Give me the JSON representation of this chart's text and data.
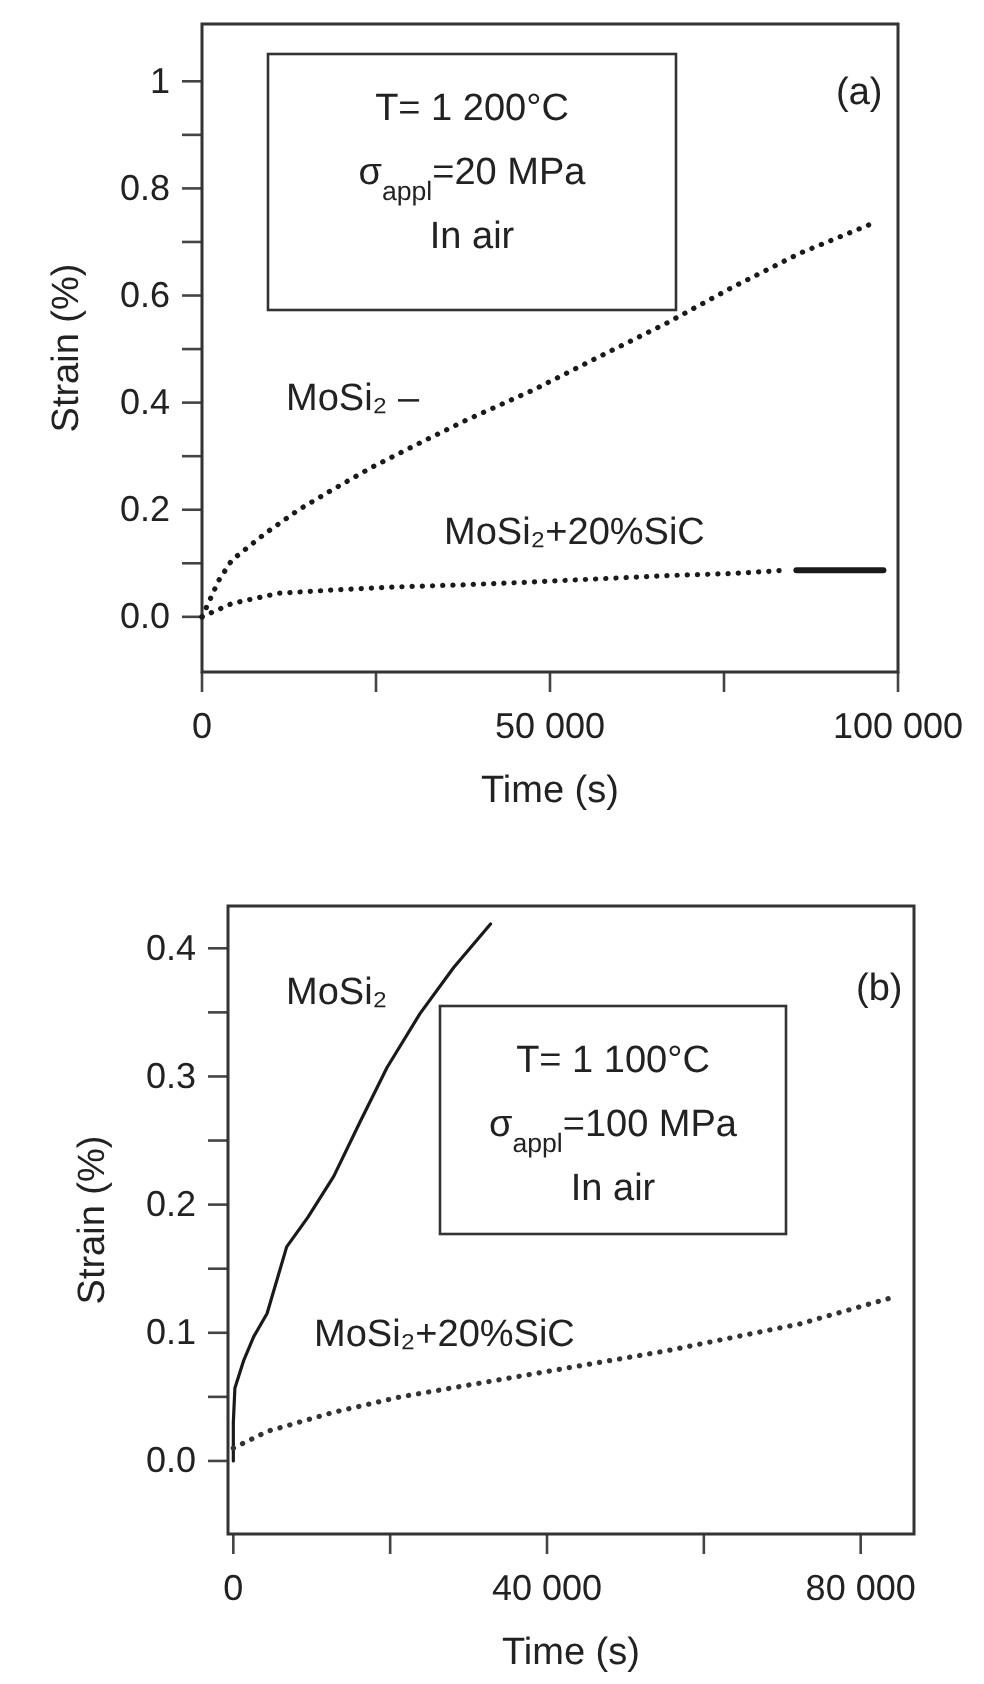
{
  "chart_data": [
    {
      "type": "line",
      "xlabel": "Time (s)",
      "ylabel": "Strain (%)",
      "xlim": [
        0,
        100000
      ],
      "ylim": [
        -0.103,
        1.107
      ],
      "xticks": [
        0,
        {
          "value": 25000,
          "label": null
        },
        {
          "value": 50000,
          "label": "50 000"
        },
        {
          "value": 75000,
          "label": null
        },
        {
          "value": 100000,
          "label": "100 000"
        }
      ],
      "yticks": [
        {
          "value": 0,
          "label": "0.0"
        },
        {
          "value": 0.1,
          "label": null
        },
        {
          "value": 0.2,
          "label": "0.2"
        },
        {
          "value": 0.3,
          "label": null
        },
        {
          "value": 0.4,
          "label": "0.4"
        },
        {
          "value": 0.5,
          "label": null
        },
        {
          "value": 0.6,
          "label": "0.6"
        },
        {
          "value": 0.7,
          "label": null
        },
        {
          "value": 0.8,
          "label": "0.8"
        },
        {
          "value": 0.9,
          "label": null
        },
        1
      ],
      "annotations": [
        "T= 1 200°C",
        "σ$_{appl}$=20 MPa",
        "In air",
        "(a)"
      ],
      "series": [
        {
          "name": "MoSi₂ –",
          "color": "#1a1a1a",
          "line_style": "dotted",
          "x": [
            0,
            2400,
            4300,
            9100,
            13900,
            18700,
            24500,
            32100,
            37900,
            47500,
            57100,
            66700,
            76300,
            85900,
            96400
          ],
          "values": [
            0,
            0.068,
            0.106,
            0.156,
            0.2,
            0.237,
            0.28,
            0.33,
            0.367,
            0.423,
            0.486,
            0.548,
            0.616,
            0.679,
            0.735
          ]
        },
        {
          "name": "MoSi₂+20%SiC",
          "color": "#1a1a1a",
          "line_style": "dotted",
          "x": [
            0,
            4300,
            11000,
            18700,
            28300,
            37900,
            47500,
            57100,
            66700,
            76300,
            84000
          ],
          "values": [
            0,
            0.025,
            0.044,
            0.05,
            0.056,
            0.06,
            0.065,
            0.071,
            0.077,
            0.081,
            0.087
          ]
        },
        {
          "color": "#1a1a1a",
          "line_style": "solid",
          "x": [
            85400,
            97900
          ],
          "values": [
            0.087,
            0.087
          ]
        }
      ]
    },
    {
      "type": "line",
      "xlabel": "Time (s)",
      "ylabel": "Strain (%)",
      "xlim": [
        -680,
        86800
      ],
      "ylim": [
        -0.057,
        0.433
      ],
      "xticks": [
        0,
        {
          "value": 20000,
          "label": null
        },
        {
          "value": 40000,
          "label": "40 000"
        },
        {
          "value": 60000,
          "label": null
        },
        {
          "value": 80000,
          "label": "80 000"
        }
      ],
      "yticks": [
        {
          "value": 0,
          "label": "0.0"
        },
        {
          "value": 0.05,
          "label": null
        },
        0.1,
        {
          "value": 0.15,
          "label": null
        },
        0.2,
        {
          "value": 0.25,
          "label": null
        },
        0.3,
        {
          "value": 0.35,
          "label": null
        },
        0.4
      ],
      "annotations": [
        "T= 1 100°C",
        "σ$_{appl}$=100 MPa",
        "In air",
        "(b)"
      ],
      "series": [
        {
          "name": "MoSi₂",
          "color": "#1a1a1a",
          "line_style": "solid",
          "x": [
            0,
            0,
            200,
            1300,
            2600,
            4300,
            6800,
            9500,
            12800,
            16200,
            19600,
            23800,
            28100,
            32800
          ],
          "values": [
            0,
            0.03,
            0.057,
            0.078,
            0.097,
            0.115,
            0.167,
            0.19,
            0.222,
            0.265,
            0.307,
            0.349,
            0.385,
            0.419
          ]
        },
        {
          "name": "MoSi₂+20%SiC",
          "color": "#333333",
          "line_style": "dotted",
          "x": [
            0,
            4300,
            12800,
            21300,
            38300,
            55300,
            72300,
            84300
          ],
          "values": [
            0.01,
            0.023,
            0.038,
            0.05,
            0.068,
            0.086,
            0.107,
            0.128
          ]
        }
      ]
    }
  ]
}
